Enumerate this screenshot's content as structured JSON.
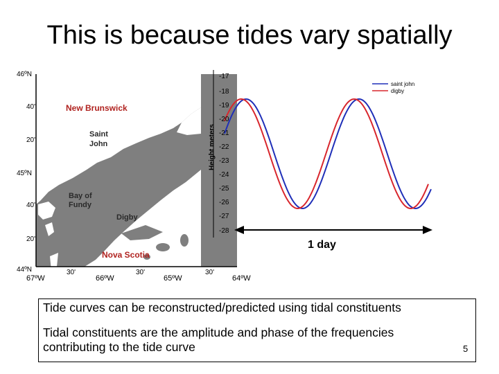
{
  "slide": {
    "title": "This is because tides vary spatially",
    "page_number": "5"
  },
  "map": {
    "labels": {
      "new_brunswick": "New Brunswick",
      "saint_john": "Saint John",
      "bay_of_fundy": "Bay of Fundy",
      "digby": "Digby",
      "nova_scotia": "Nova Scotia"
    },
    "lat_ticks": [
      "46ºN",
      "40'",
      "20'",
      "45ºN",
      "40'",
      "20'",
      "44ºN"
    ],
    "lon_ticks": [
      "67ºW",
      "30'",
      "66ºW",
      "30'",
      "65ºW",
      "30'",
      "64ºW"
    ],
    "colors": {
      "land": "#ffffff",
      "water": "#7f7f7f",
      "label_red": "#b0221f"
    }
  },
  "chart_data": {
    "type": "line",
    "ylabel": "Height meters",
    "y_ticks": [
      "-17",
      "-18",
      "-19",
      "-20",
      "-21",
      "-22",
      "-23",
      "-24",
      "-25",
      "-26",
      "-27",
      "-28"
    ],
    "series": [
      {
        "name": "saint john",
        "color": "#1f2fb8"
      },
      {
        "name": "digby",
        "color": "#d8262d"
      }
    ],
    "annotation": "1 day"
  },
  "text_box": {
    "line1": "Tide curves can be reconstructed/predicted using tidal constituents",
    "line2": "Tidal constituents are the amplitude and phase of the frequencies contributing to the tide curve"
  }
}
